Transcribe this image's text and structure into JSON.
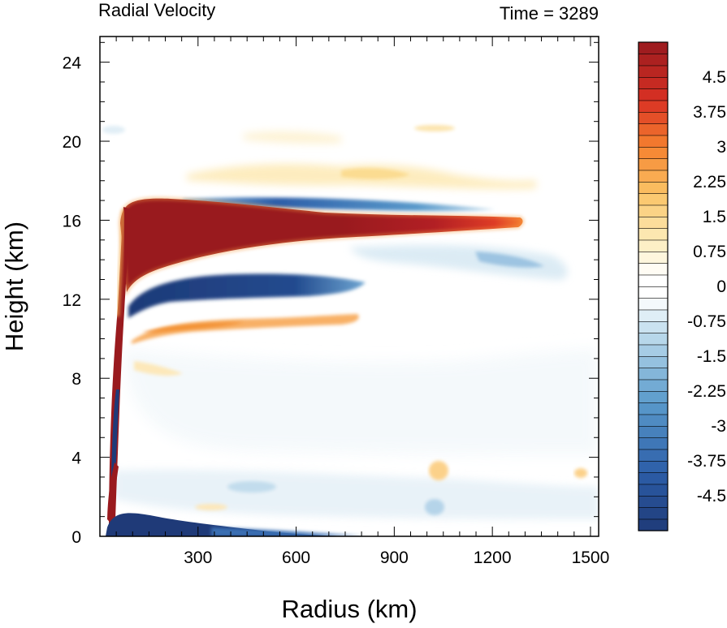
{
  "chart_data": {
    "type": "heatmap",
    "title_left": "Radial Velocity",
    "title_right": "Time = 3289",
    "xlabel": "Radius (km)",
    "ylabel": "Height (km)",
    "xlim": [
      0,
      1525
    ],
    "ylim": [
      0,
      25.3
    ],
    "xticks": [
      300,
      600,
      900,
      1200,
      1500
    ],
    "yticks": [
      0,
      4,
      8,
      12,
      16,
      20,
      24
    ],
    "colorbar": {
      "min": -5.25,
      "max": 5.25,
      "step": 0.25,
      "labels": [
        "4.5",
        "3.75",
        "3",
        "2.25",
        "1.5",
        "0.75",
        "0",
        "-0.75",
        "-1.5",
        "-2.25",
        "-3",
        "-3.75",
        "-4.5"
      ],
      "label_values": [
        4.5,
        3.75,
        3,
        2.25,
        1.5,
        0.75,
        0,
        -0.75,
        -1.5,
        -2.25,
        -3,
        -3.75,
        -4.5
      ],
      "colors": {
        "max": "#991a1e",
        "red": "#d93124",
        "orange": "#f5822f",
        "yellow": "#fcdc83",
        "white": "#ffffff",
        "lightblue": "#bfdced",
        "blue": "#4a8cc4",
        "min": "#1f3a78"
      }
    },
    "features": [
      {
        "label": "upper outflow jet",
        "r": [
          60,
          1300
        ],
        "z": [
          12.6,
          17.0
        ],
        "value": 5.25
      },
      {
        "label": "inflow layer below outflow",
        "r": [
          60,
          780
        ],
        "z": [
          11.7,
          13.3
        ],
        "value": -5.0
      },
      {
        "label": "outflow cap inflow",
        "r": [
          270,
          1200
        ],
        "z": [
          16.6,
          17.3
        ],
        "value": -3.3
      },
      {
        "label": "lower weak outflow",
        "r": [
          90,
          700
        ],
        "z": [
          10.3,
          11.2
        ],
        "value": 2.2
      },
      {
        "label": "upper diffuse outflow",
        "r": [
          300,
          1300
        ],
        "z": [
          18.0,
          18.8
        ],
        "value": 1.0
      },
      {
        "label": "outer upper inflow",
        "r": [
          800,
          1520
        ],
        "z": [
          13.5,
          15.5
        ],
        "value": -1.8
      },
      {
        "label": "boundary layer inflow",
        "r": [
          30,
          450
        ],
        "z": [
          0,
          1.2
        ],
        "value": -5.25
      },
      {
        "label": "eyewall outflow column",
        "r": [
          35,
          60
        ],
        "z": [
          0.5,
          4
        ],
        "value": 5.25
      },
      {
        "label": "eyewall inflow column",
        "r": [
          30,
          45
        ],
        "z": [
          3,
          7
        ],
        "value": -5.0
      }
    ]
  }
}
